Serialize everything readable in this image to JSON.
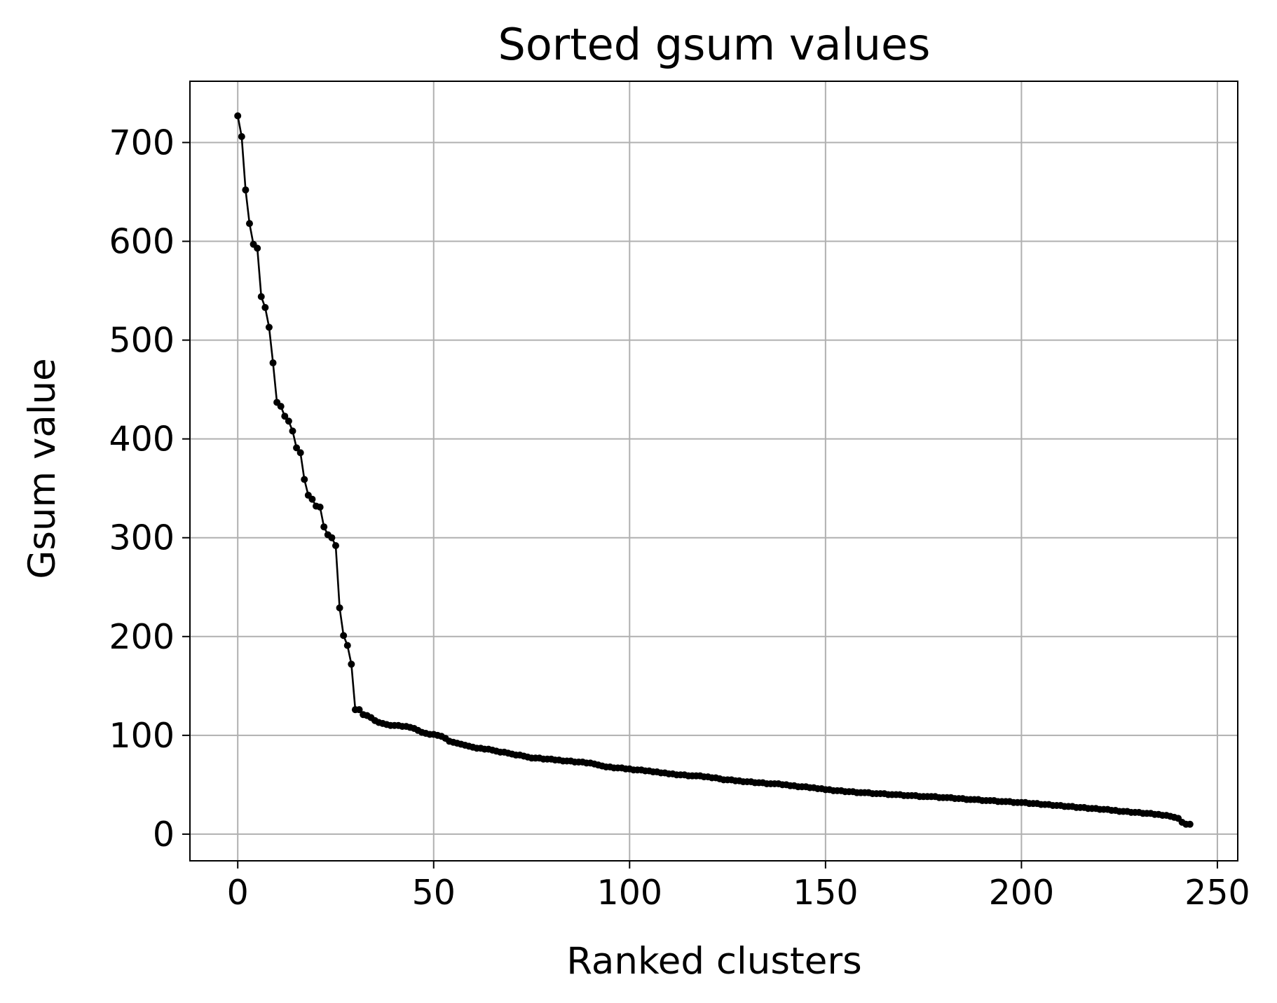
{
  "chart_data": {
    "type": "line",
    "title": "Sorted gsum values",
    "xlabel": "Ranked clusters",
    "ylabel": "Gsum value",
    "xlim": [
      -12.2,
      255.2
    ],
    "ylim": [
      -27,
      762
    ],
    "xticks": [
      0,
      50,
      100,
      150,
      200,
      250
    ],
    "yticks": [
      0,
      100,
      200,
      300,
      400,
      500,
      600,
      700
    ],
    "grid": true,
    "legend": "none",
    "colors": {
      "line": "#000000",
      "marker": "#000000",
      "grid": "#b0b0b0",
      "frame": "#000000"
    },
    "series": [
      {
        "marker": "point",
        "x": [
          0,
          1,
          2,
          3,
          4,
          5,
          6,
          7,
          8,
          9,
          10,
          11,
          12,
          13,
          14,
          15,
          16,
          17,
          18,
          19,
          20,
          21,
          22,
          23,
          24,
          25,
          26,
          27,
          28,
          29,
          30,
          31,
          32,
          33,
          34,
          35,
          36,
          37,
          38,
          39,
          40,
          41,
          42,
          43,
          44,
          45,
          46,
          47,
          48,
          49,
          50,
          51,
          52,
          53,
          54,
          55,
          56,
          57,
          58,
          59,
          60,
          61,
          62,
          63,
          64,
          65,
          66,
          67,
          68,
          69,
          70,
          71,
          72,
          73,
          74,
          75,
          76,
          77,
          78,
          79,
          80,
          81,
          82,
          83,
          84,
          85,
          86,
          87,
          88,
          89,
          90,
          91,
          92,
          93,
          94,
          95,
          96,
          97,
          98,
          99,
          100,
          101,
          102,
          103,
          104,
          105,
          106,
          107,
          108,
          109,
          110,
          111,
          112,
          113,
          114,
          115,
          116,
          117,
          118,
          119,
          120,
          121,
          122,
          123,
          124,
          125,
          126,
          127,
          128,
          129,
          130,
          131,
          132,
          133,
          134,
          135,
          136,
          137,
          138,
          139,
          140,
          141,
          142,
          143,
          144,
          145,
          146,
          147,
          148,
          149,
          150,
          151,
          152,
          153,
          154,
          155,
          156,
          157,
          158,
          159,
          160,
          161,
          162,
          163,
          164,
          165,
          166,
          167,
          168,
          169,
          170,
          171,
          172,
          173,
          174,
          175,
          176,
          177,
          178,
          179,
          180,
          181,
          182,
          183,
          184,
          185,
          186,
          187,
          188,
          189,
          190,
          191,
          192,
          193,
          194,
          195,
          196,
          197,
          198,
          199,
          200,
          201,
          202,
          203,
          204,
          205,
          206,
          207,
          208,
          209,
          210,
          211,
          212,
          213,
          214,
          215,
          216,
          217,
          218,
          219,
          220,
          221,
          222,
          223,
          224,
          225,
          226,
          227,
          228,
          229,
          230,
          231,
          232,
          233,
          234,
          235,
          236,
          237,
          238,
          239,
          240,
          241,
          242,
          243
        ],
        "y": [
          727,
          706,
          652,
          618,
          597,
          593,
          544,
          533,
          513,
          477,
          437,
          433,
          423,
          418,
          408,
          391,
          386,
          359,
          343,
          339,
          332,
          331,
          311,
          303,
          300,
          292,
          229,
          201,
          191,
          172,
          126,
          126,
          121,
          120,
          118,
          115,
          113,
          112,
          111,
          110,
          110,
          110,
          109,
          109,
          108,
          107,
          105,
          103,
          102,
          101,
          101,
          100,
          99,
          97,
          94,
          93,
          92,
          91,
          90,
          89,
          88,
          87,
          87,
          86,
          86,
          85,
          84,
          83,
          83,
          82,
          81,
          80,
          80,
          79,
          78,
          77,
          77,
          77,
          76,
          76,
          76,
          75,
          75,
          74,
          74,
          74,
          73,
          73,
          73,
          72,
          72,
          71,
          70,
          69,
          68,
          68,
          67,
          67,
          67,
          66,
          66,
          65,
          65,
          65,
          64,
          64,
          63,
          63,
          62,
          62,
          61,
          61,
          60,
          60,
          60,
          59,
          59,
          59,
          59,
          58,
          58,
          57,
          57,
          56,
          55,
          55,
          55,
          54,
          54,
          53,
          53,
          53,
          52,
          52,
          52,
          51,
          51,
          51,
          51,
          50,
          50,
          49,
          49,
          48,
          48,
          48,
          47,
          47,
          46,
          46,
          45,
          45,
          44,
          44,
          44,
          43,
          43,
          43,
          42,
          42,
          42,
          42,
          41,
          41,
          41,
          41,
          40,
          40,
          40,
          40,
          39,
          39,
          39,
          39,
          38,
          38,
          38,
          38,
          38,
          37,
          37,
          37,
          37,
          36,
          36,
          36,
          35,
          35,
          35,
          35,
          34,
          34,
          34,
          34,
          33,
          33,
          33,
          33,
          32,
          32,
          32,
          32,
          31,
          31,
          31,
          30,
          30,
          30,
          29,
          29,
          29,
          28,
          28,
          28,
          27,
          27,
          27,
          26,
          26,
          26,
          25,
          25,
          25,
          24,
          24,
          23,
          23,
          23,
          22,
          22,
          22,
          21,
          21,
          21,
          20,
          20,
          19,
          19,
          18,
          17,
          16,
          12,
          10,
          10
        ]
      }
    ]
  }
}
